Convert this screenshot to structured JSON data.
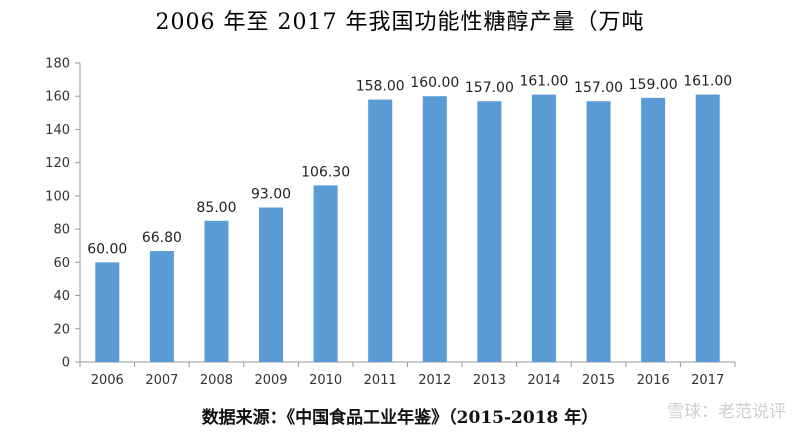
{
  "chart_data": {
    "type": "bar",
    "title": "2006 年至 2017 年我国功能性糖醇产量（万吨",
    "categories": [
      "2006",
      "2007",
      "2008",
      "2009",
      "2010",
      "2011",
      "2012",
      "2013",
      "2014",
      "2015",
      "2016",
      "2017"
    ],
    "values": [
      60.0,
      66.8,
      85.0,
      93.0,
      106.3,
      158.0,
      160.0,
      157.0,
      161.0,
      157.0,
      159.0,
      161.0
    ],
    "value_labels": [
      "60.00",
      "66.80",
      "85.00",
      "93.00",
      "106.30",
      "158.00",
      "160.00",
      "157.00",
      "161.00",
      "157.00",
      "159.00",
      "161.00"
    ],
    "ylim": [
      0,
      180
    ],
    "yticks": [
      0,
      20,
      40,
      60,
      80,
      100,
      120,
      140,
      160,
      180
    ],
    "xlabel": "",
    "ylabel": "",
    "grid": false,
    "bar_color": "#5B9BD5"
  },
  "footer": {
    "source": "数据来源：《中国食品工业年鉴》（2015-2018 年）",
    "watermark": "雪球：老范说评"
  }
}
